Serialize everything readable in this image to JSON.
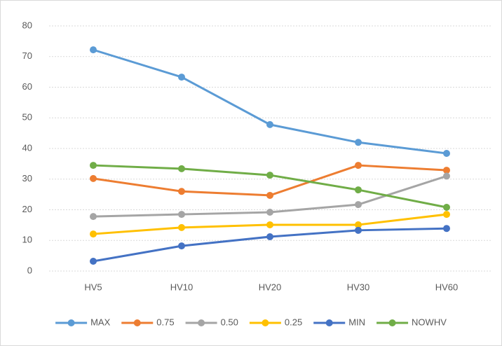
{
  "chart_data": {
    "type": "line",
    "categories": [
      "HV5",
      "HV10",
      "HV20",
      "HV30",
      "HV60"
    ],
    "series": [
      {
        "name": "MAX",
        "color": "#5b9bd5",
        "values": [
          72.2,
          63.3,
          47.8,
          42,
          38.4
        ]
      },
      {
        "name": "0.75",
        "color": "#ed7d31",
        "values": [
          30.2,
          26,
          24.7,
          34.5,
          32.9
        ]
      },
      {
        "name": "0.50",
        "color": "#a5a5a5",
        "values": [
          17.8,
          18.5,
          19.2,
          21.7,
          31
        ]
      },
      {
        "name": "0.25",
        "color": "#ffc000",
        "values": [
          12.1,
          14.2,
          15.1,
          15.1,
          18.5
        ]
      },
      {
        "name": "MIN",
        "color": "#4472c4",
        "values": [
          3.2,
          8.2,
          11.2,
          13.3,
          13.9
        ]
      },
      {
        "name": "NOWHV",
        "color": "#70ad47",
        "values": [
          34.5,
          33.4,
          31.3,
          26.5,
          20.8
        ]
      }
    ],
    "ylim": [
      0,
      80
    ],
    "yticks": [
      0,
      10,
      20,
      30,
      40,
      50,
      60,
      70,
      80
    ],
    "grid": true,
    "legend": "bottom"
  }
}
